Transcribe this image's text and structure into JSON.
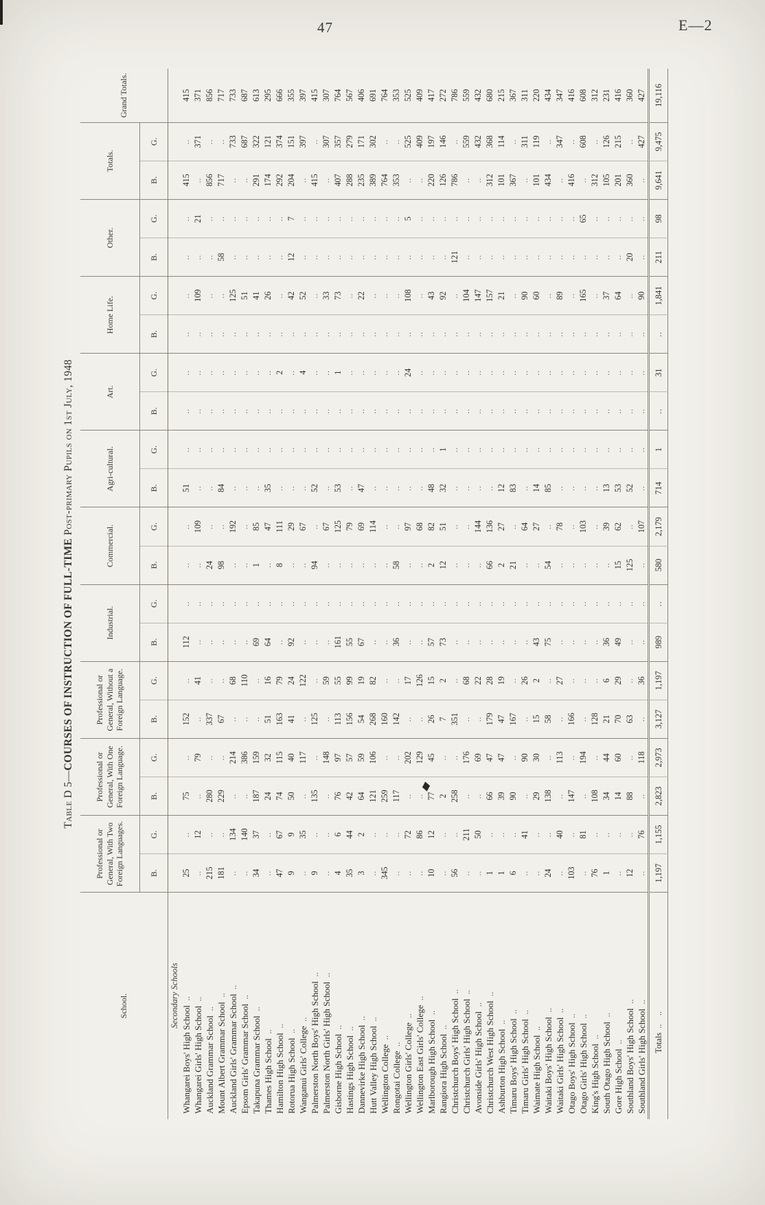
{
  "page": {
    "number": "47",
    "ref": "E—2"
  },
  "title": {
    "prefix": "Table D 5—",
    "main": "COURSES OF INSTRUCTION OF FULL-TIME",
    "suffix": " Post-primary Pupils on 1st July, 1948"
  },
  "table": {
    "school_header": "School.",
    "grand_totals_header": "Grand Totals.",
    "sub_headers": [
      "B.",
      "G."
    ],
    "categories": [
      "Professional or General, With Two Foreign Languages.",
      "Professional or General, With One Foreign Language.",
      "Professional or General, Without a Foreign Language.",
      "Industrial.",
      "Commercial.",
      "Agri-cultural.",
      "Art.",
      "Home Life.",
      "Other.",
      "Totals."
    ],
    "section_label": "Secondary Schools",
    "rows": [
      {
        "school": "Whangarei Boys' High School",
        "values": [
          "25",
          "..",
          "75",
          "..",
          "152",
          "..",
          "112",
          "..",
          "..",
          "..",
          "51",
          "..",
          "..",
          "..",
          "..",
          "..",
          "..",
          "..",
          "415",
          "..",
          "415"
        ]
      },
      {
        "school": "Whangarei Girls' High School",
        "values": [
          "..",
          "12",
          "..",
          "79",
          "..",
          "41",
          "..",
          "..",
          "..",
          "109",
          "..",
          "..",
          "..",
          "..",
          "..",
          "109",
          "..",
          "21",
          "..",
          "371",
          "371"
        ]
      },
      {
        "school": "Auckland Grammar School",
        "values": [
          "215",
          "..",
          "280",
          "..",
          "337",
          "..",
          "..",
          "..",
          "24",
          "..",
          "..",
          "..",
          "..",
          "..",
          "..",
          "..",
          "..",
          "..",
          "856",
          "..",
          "856"
        ]
      },
      {
        "school": "Mount Albert Grammar School",
        "values": [
          "181",
          "..",
          "229",
          "..",
          "67",
          "..",
          "..",
          "..",
          "98",
          "..",
          "84",
          "..",
          "..",
          "..",
          "..",
          "..",
          "58",
          "..",
          "717",
          "..",
          "717"
        ]
      },
      {
        "school": "Auckland Girls' Grammar School",
        "values": [
          "..",
          "134",
          "..",
          "214",
          "..",
          "68",
          "..",
          "..",
          "..",
          "192",
          "..",
          "..",
          "..",
          "..",
          "..",
          "125",
          "..",
          "..",
          "..",
          "733",
          "733"
        ]
      },
      {
        "school": "Epsom Girls' Grammar School",
        "values": [
          "..",
          "140",
          "..",
          "386",
          "..",
          "110",
          "..",
          "..",
          "..",
          "..",
          "..",
          "..",
          "..",
          "..",
          "..",
          "51",
          "..",
          "..",
          "..",
          "687",
          "687"
        ]
      },
      {
        "school": "Takapuna Grammar School",
        "values": [
          "34",
          "37",
          "187",
          "159",
          "..",
          "..",
          "69",
          "..",
          "1",
          "85",
          "..",
          "..",
          "..",
          "..",
          "..",
          "41",
          "..",
          "..",
          "291",
          "322",
          "613"
        ]
      },
      {
        "school": "Thames High School",
        "values": [
          "..",
          "..",
          "24",
          "32",
          "51",
          "16",
          "64",
          "..",
          "..",
          "47",
          "35",
          "..",
          "..",
          "..",
          "..",
          "26",
          "..",
          "..",
          "174",
          "121",
          "295"
        ]
      },
      {
        "school": "Hamilton High School",
        "values": [
          "47",
          "67",
          "74",
          "115",
          "163",
          "79",
          "..",
          "..",
          "8",
          "111",
          "..",
          "..",
          "..",
          "2",
          "..",
          "..",
          "..",
          "..",
          "292",
          "374",
          "666"
        ]
      },
      {
        "school": "Rotorua High School",
        "values": [
          "9",
          "9",
          "50",
          "40",
          "41",
          "24",
          "92",
          "..",
          "..",
          "29",
          "..",
          "..",
          "..",
          "..",
          "..",
          "42",
          "12",
          "7",
          "204",
          "151",
          "355"
        ]
      },
      {
        "school": "Wanganui Girls' College",
        "values": [
          "..",
          "35",
          "..",
          "117",
          "..",
          "122",
          "..",
          "..",
          "..",
          "67",
          "..",
          "..",
          "..",
          "4",
          "..",
          "52",
          "..",
          "..",
          "..",
          "397",
          "397"
        ]
      },
      {
        "school": "Palmerston North Boys' High School",
        "values": [
          "9",
          "..",
          "135",
          "..",
          "125",
          "..",
          "..",
          "..",
          "94",
          "..",
          "52",
          "..",
          "..",
          "..",
          "..",
          "..",
          "..",
          "..",
          "415",
          "..",
          "415"
        ]
      },
      {
        "school": "Palmerston North Girls' High School",
        "values": [
          "..",
          "..",
          "..",
          "148",
          "..",
          "59",
          "..",
          "..",
          "..",
          "67",
          "..",
          "..",
          "..",
          "..",
          "..",
          "33",
          "..",
          "..",
          "..",
          "307",
          "307"
        ]
      },
      {
        "school": "Gisborne High School",
        "values": [
          "4",
          "6",
          "76",
          "97",
          "113",
          "55",
          "161",
          "..",
          "..",
          "125",
          "53",
          "..",
          "..",
          "1",
          "..",
          "73",
          "..",
          "..",
          "407",
          "357",
          "764"
        ]
      },
      {
        "school": "Hastings High School",
        "values": [
          "35",
          "44",
          "42",
          "57",
          "156",
          "99",
          "55",
          "..",
          "..",
          "79",
          "..",
          "..",
          "..",
          "..",
          "..",
          "..",
          "..",
          "..",
          "288",
          "279",
          "567"
        ]
      },
      {
        "school": "Dannevirke High School",
        "values": [
          "3",
          "2",
          "64",
          "59",
          "54",
          "19",
          "67",
          "..",
          "..",
          "69",
          "47",
          "..",
          "..",
          "..",
          "..",
          "22",
          "..",
          "..",
          "235",
          "171",
          "406"
        ]
      },
      {
        "school": "Hutt Valley High School",
        "values": [
          "..",
          "..",
          "121",
          "106",
          "268",
          "82",
          "..",
          "..",
          "..",
          "114",
          "..",
          "..",
          "..",
          "..",
          "..",
          "..",
          "..",
          "..",
          "389",
          "302",
          "691"
        ]
      },
      {
        "school": "Wellington College",
        "values": [
          "345",
          "..",
          "259",
          "..",
          "160",
          "..",
          "..",
          "..",
          "..",
          "..",
          "..",
          "..",
          "..",
          "..",
          "..",
          "..",
          "..",
          "..",
          "764",
          "..",
          "764"
        ]
      },
      {
        "school": "Rongotai College",
        "values": [
          "..",
          "..",
          "117",
          "..",
          "142",
          "..",
          "36",
          "..",
          "58",
          "..",
          "..",
          "..",
          "..",
          "..",
          "..",
          "..",
          "..",
          "..",
          "353",
          "..",
          "353"
        ]
      },
      {
        "school": "Wellington Girls' College",
        "values": [
          "..",
          "72",
          "..",
          "202",
          "..",
          "17",
          "..",
          "..",
          "..",
          "97",
          "..",
          "..",
          "..",
          "24",
          "..",
          "108",
          "..",
          "5",
          "..",
          "525",
          "525"
        ]
      },
      {
        "school": "Wellington East Girls' College",
        "values": [
          "..",
          "86",
          "..",
          "129",
          "..",
          "126",
          "..",
          "..",
          "..",
          "68",
          "..",
          "..",
          "..",
          "..",
          "..",
          "..",
          "..",
          "..",
          "..",
          "409",
          "409"
        ]
      },
      {
        "school": "Marlborough High School",
        "values": [
          "10",
          "12",
          "77",
          "45",
          "26",
          "15",
          "57",
          "..",
          "2",
          "82",
          "48",
          "..",
          "..",
          "..",
          "..",
          "43",
          "..",
          "..",
          "220",
          "197",
          "417"
        ]
      },
      {
        "school": "Rangiora High School",
        "values": [
          "..",
          "..",
          "2",
          "..",
          "7",
          "2",
          "73",
          "..",
          "12",
          "51",
          "32",
          "1",
          "..",
          "..",
          "..",
          "92",
          "..",
          "..",
          "126",
          "146",
          "272"
        ]
      },
      {
        "school": "Christchurch Boys' High School",
        "values": [
          "56",
          "..",
          "258",
          "..",
          "351",
          "..",
          "..",
          "..",
          "..",
          "..",
          "..",
          "..",
          "..",
          "..",
          "..",
          "..",
          "121",
          "..",
          "786",
          "..",
          "786"
        ]
      },
      {
        "school": "Christchurch Girls' High School",
        "values": [
          "..",
          "211",
          "..",
          "176",
          "..",
          "68",
          "..",
          "..",
          "..",
          "..",
          "..",
          "..",
          "..",
          "..",
          "..",
          "104",
          "..",
          "..",
          "..",
          "559",
          "559"
        ]
      },
      {
        "school": "Avonside Girls' High School",
        "values": [
          "..",
          "50",
          "..",
          "69",
          "..",
          "22",
          "..",
          "..",
          "..",
          "144",
          "..",
          "..",
          "..",
          "..",
          "..",
          "147",
          "..",
          "..",
          "..",
          "432",
          "432"
        ]
      },
      {
        "school": "Christchurch West High School",
        "values": [
          "1",
          "..",
          "66",
          "47",
          "179",
          "28",
          "..",
          "..",
          "66",
          "136",
          "..",
          "..",
          "..",
          "..",
          "..",
          "157",
          "..",
          "..",
          "312",
          "368",
          "680"
        ]
      },
      {
        "school": "Ashburton High School",
        "values": [
          "1",
          "..",
          "39",
          "47",
          "47",
          "19",
          "..",
          "..",
          "2",
          "27",
          "12",
          "..",
          "..",
          "..",
          "..",
          "21",
          "..",
          "..",
          "101",
          "114",
          "215"
        ]
      },
      {
        "school": "Timaru Boys' High School",
        "values": [
          "6",
          "..",
          "90",
          "..",
          "167",
          "..",
          "..",
          "..",
          "21",
          "..",
          "83",
          "..",
          "..",
          "..",
          "..",
          "..",
          "..",
          "..",
          "367",
          "..",
          "367"
        ]
      },
      {
        "school": "Timaru Girls' High School",
        "values": [
          "..",
          "41",
          "..",
          "90",
          "..",
          "26",
          "..",
          "..",
          "..",
          "64",
          "..",
          "..",
          "..",
          "..",
          "..",
          "90",
          "..",
          "..",
          "..",
          "311",
          "311"
        ]
      },
      {
        "school": "Waimate High School",
        "values": [
          "..",
          "..",
          "29",
          "30",
          "15",
          "2",
          "43",
          "..",
          "..",
          "27",
          "14",
          "..",
          "..",
          "..",
          "..",
          "60",
          "..",
          "..",
          "101",
          "119",
          "220"
        ]
      },
      {
        "school": "Waitaki Boys' High School",
        "values": [
          "24",
          "..",
          "138",
          "..",
          "58",
          "..",
          "75",
          "..",
          "54",
          "..",
          "85",
          "..",
          "..",
          "..",
          "..",
          "..",
          "..",
          "..",
          "434",
          "..",
          "434"
        ]
      },
      {
        "school": "Waitaki Girls' High School",
        "values": [
          "..",
          "40",
          "..",
          "113",
          "..",
          "27",
          "..",
          "..",
          "..",
          "78",
          "..",
          "..",
          "..",
          "..",
          "..",
          "89",
          "..",
          "..",
          "..",
          "347",
          "347"
        ]
      },
      {
        "school": "Otago Boys' High School",
        "values": [
          "103",
          "..",
          "147",
          "..",
          "166",
          "..",
          "..",
          "..",
          "..",
          "..",
          "..",
          "..",
          "..",
          "..",
          "..",
          "..",
          "..",
          "..",
          "416",
          "..",
          "416"
        ]
      },
      {
        "school": "Otago Girls' High School",
        "values": [
          "..",
          "81",
          "..",
          "194",
          "..",
          "..",
          "..",
          "..",
          "..",
          "103",
          "..",
          "..",
          "..",
          "..",
          "..",
          "165",
          "..",
          "65",
          "..",
          "608",
          "608"
        ]
      },
      {
        "school": "King's High School",
        "values": [
          "76",
          "..",
          "108",
          "..",
          "128",
          "..",
          "..",
          "..",
          "..",
          "..",
          "..",
          "..",
          "..",
          "..",
          "..",
          "..",
          "..",
          "..",
          "312",
          "..",
          "312"
        ]
      },
      {
        "school": "South Otago High School",
        "values": [
          "1",
          "..",
          "34",
          "44",
          "21",
          "6",
          "36",
          "..",
          "..",
          "39",
          "13",
          "..",
          "..",
          "..",
          "..",
          "37",
          "..",
          "..",
          "105",
          "126",
          "231"
        ]
      },
      {
        "school": "Gore High School",
        "values": [
          "..",
          "..",
          "14",
          "60",
          "70",
          "29",
          "49",
          "..",
          "15",
          "62",
          "53",
          "..",
          "..",
          "..",
          "..",
          "64",
          "..",
          "..",
          "201",
          "215",
          "416"
        ]
      },
      {
        "school": "Southland Boys' High School",
        "values": [
          "12",
          "..",
          "88",
          "..",
          "63",
          "..",
          "..",
          "..",
          "125",
          "..",
          "52",
          "..",
          "..",
          "..",
          "..",
          "..",
          "20",
          "..",
          "360",
          "..",
          "360"
        ]
      },
      {
        "school": "Southland Girls' High School",
        "values": [
          "..",
          "76",
          "..",
          "118",
          "..",
          "36",
          "..",
          "..",
          "..",
          "107",
          "..",
          "..",
          "..",
          "..",
          "..",
          "90",
          "..",
          "..",
          "..",
          "427",
          "427"
        ]
      }
    ],
    "totals_label": "Totals",
    "totals_values": [
      "1,197",
      "1,155",
      "2,823",
      "2,973",
      "3,127",
      "1,197",
      "989",
      "..",
      "580",
      "2,179",
      "714",
      "1",
      "..",
      "31",
      "..",
      "1,841",
      "211",
      "98",
      "9,641",
      "9,475",
      "19,116"
    ]
  }
}
